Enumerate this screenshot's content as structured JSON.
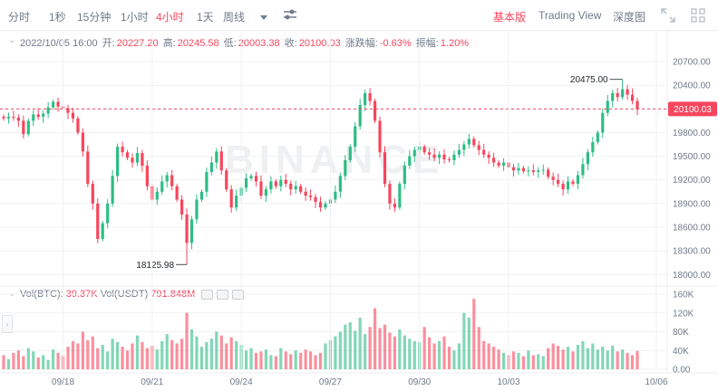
{
  "toolbar": {
    "timeframes": [
      "分时",
      "1秒",
      "15分钟",
      "1小时",
      "4小时",
      "1天",
      "周线"
    ],
    "active_timeframe": "4小时",
    "more_icon": "caret-down-icon",
    "indicator_icon": "sliders-icon",
    "views": [
      "基本版",
      "Trading View",
      "深度图"
    ],
    "active_view": "基本版",
    "fullscreen_icon": "expand-icon",
    "layout_icon": "grid-icon"
  },
  "ohlc": {
    "datetime": "2022/10/05 16:00",
    "open_label": "开:",
    "open": "20227.20",
    "high_label": "高:",
    "high": "20245.58",
    "low_label": "低:",
    "low": "20003.38",
    "close_label": "收:",
    "close": "20100.03",
    "change_label": "涨跌幅:",
    "change": "-0.63%",
    "amplitude_label": "振幅:",
    "amplitude": "1.20%"
  },
  "volume_legend": {
    "btc_label": "Vol(BTC):",
    "btc": "39.37K",
    "usdt_label": "Vol(USDT)",
    "usdt": "791.848M"
  },
  "watermark": "BINANCE",
  "colors": {
    "up": "#2ebd85",
    "down": "#f6465d",
    "axis_text": "#707a8a",
    "grid": "#f0f1f3"
  },
  "chart_data": [
    {
      "type": "candlestick",
      "price_axis": {
        "ticks": [
          18000,
          18300,
          18600,
          18900,
          19200,
          19500,
          19800,
          20100,
          20400,
          20700
        ],
        "range": [
          17900,
          20850
        ]
      },
      "x_ticks": [
        "09/18",
        "09/21",
        "09/24",
        "09/27",
        "09/30",
        "10/03",
        "10/06"
      ],
      "last_price": "20100.03",
      "high_marker": {
        "label": "20475.00",
        "value": 20475
      },
      "low_marker": {
        "label": "18125.98",
        "value": 18125.98
      },
      "closes": [
        19980,
        20000,
        19990,
        19950,
        19780,
        19950,
        20030,
        20000,
        20040,
        20120,
        20190,
        20130,
        20110,
        20050,
        19980,
        19800,
        19560,
        19150,
        18900,
        18450,
        18650,
        18900,
        19250,
        19620,
        19550,
        19480,
        19420,
        19540,
        19380,
        19120,
        18950,
        19050,
        19180,
        19260,
        19120,
        18950,
        18760,
        18400,
        18700,
        18950,
        19050,
        19300,
        19420,
        19560,
        19320,
        19080,
        18850,
        19000,
        19100,
        19220,
        19250,
        19180,
        19000,
        19080,
        19180,
        19120,
        19200,
        19150,
        19080,
        19120,
        19050,
        19000,
        18980,
        18920,
        18850,
        18900,
        18950,
        19050,
        19250,
        19450,
        19620,
        19880,
        20150,
        20300,
        20200,
        19950,
        19550,
        19150,
        18900,
        18850,
        19150,
        19380,
        19500,
        19580,
        19620,
        19550,
        19520,
        19480,
        19520,
        19460,
        19450,
        19520,
        19580,
        19650,
        19720,
        19640,
        19580,
        19520,
        19480,
        19420,
        19380,
        19420,
        19360,
        19320,
        19350,
        19310,
        19320,
        19300,
        19320,
        19330,
        19240,
        19200,
        19150,
        19080,
        19180,
        19150,
        19260,
        19400,
        19550,
        19680,
        19800,
        20050,
        20200,
        20300,
        20250,
        20350,
        20280,
        20200,
        20100
      ],
      "volumes_k": [
        30,
        22,
        35,
        40,
        28,
        45,
        38,
        25,
        30,
        20,
        42,
        35,
        28,
        48,
        60,
        55,
        80,
        62,
        70,
        45,
        52,
        38,
        65,
        58,
        48,
        40,
        55,
        72,
        58,
        45,
        50,
        42,
        60,
        75,
        62,
        55,
        65,
        120,
        85,
        70,
        48,
        58,
        65,
        80,
        72,
        55,
        68,
        60,
        52,
        40,
        45,
        35,
        38,
        42,
        30,
        28,
        45,
        38,
        32,
        40,
        35,
        42,
        38,
        30,
        35,
        55,
        62,
        70,
        80,
        95,
        100,
        82,
        110,
        75,
        90,
        130,
        88,
        95,
        78,
        70,
        85,
        72,
        65,
        60,
        58,
        90,
        68,
        55,
        60,
        70,
        48,
        40,
        55,
        120,
        110,
        150,
        90,
        60,
        55,
        48,
        42,
        35,
        30,
        38,
        35,
        28,
        40,
        30,
        32,
        28,
        45,
        55,
        50,
        42,
        48,
        38,
        52,
        60,
        45,
        55,
        42,
        48,
        40,
        50,
        38,
        42,
        35,
        30,
        39
      ]
    }
  ]
}
